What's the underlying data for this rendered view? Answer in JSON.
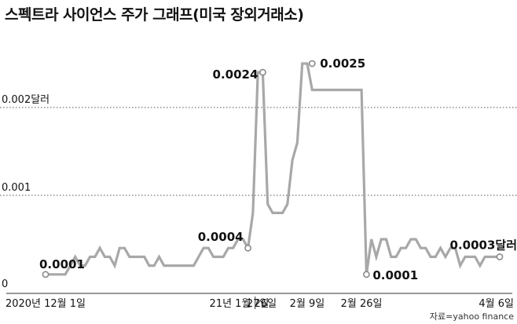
{
  "chart_data": {
    "type": "line",
    "title": "스펙트라 사이언스 주가 그래프(미국 장외거래소)",
    "source": "자료=yahoo finance",
    "unit": "달러",
    "y_ticks": [
      {
        "value": 0,
        "label": "0"
      },
      {
        "value": 0.001,
        "label": "0.001"
      },
      {
        "value": 0.002,
        "label": "0.002달러"
      }
    ],
    "ylim": [
      0,
      0.0028
    ],
    "grid": "dotted horizontal",
    "x_ticks": [
      {
        "index": 0,
        "label": "2020년 12월 1일"
      },
      {
        "index": 40,
        "label": "21년 1월 26일"
      },
      {
        "index": 43,
        "label": "27일"
      },
      {
        "index": 53,
        "label": "2월 9일"
      },
      {
        "index": 64,
        "label": "2월 26일"
      },
      {
        "index": 92,
        "label": "4월 6일"
      }
    ],
    "annotations": [
      {
        "index": 0,
        "value": 0.0001,
        "label": "0.0001"
      },
      {
        "index": 41,
        "value": 0.0004,
        "label": "0.0004"
      },
      {
        "index": 44,
        "value": 0.0024,
        "label": "0.0024"
      },
      {
        "index": 54,
        "value": 0.0025,
        "label": "0.0025"
      },
      {
        "index": 65,
        "value": 0.0001,
        "label": "0.0001"
      },
      {
        "index": 92,
        "value": 0.0003,
        "label": "0.0003달러"
      }
    ],
    "series": [
      {
        "values": [
          0.0001,
          0.0001,
          0.0001,
          0.0001,
          0.0001,
          0.0002,
          0.0003,
          0.0002,
          0.0002,
          0.0003,
          0.0003,
          0.0004,
          0.0003,
          0.0003,
          0.0002,
          0.0004,
          0.0004,
          0.0003,
          0.0003,
          0.0003,
          0.0003,
          0.0002,
          0.0002,
          0.0003,
          0.0002,
          0.0002,
          0.0002,
          0.0002,
          0.0002,
          0.0002,
          0.0002,
          0.0003,
          0.0004,
          0.0004,
          0.0003,
          0.0003,
          0.0003,
          0.0004,
          0.0004,
          0.0005,
          0.0005,
          0.0004,
          0.0008,
          0.0024,
          0.0024,
          0.0009,
          0.0008,
          0.0008,
          0.0008,
          0.0009,
          0.0014,
          0.0016,
          0.0025,
          0.0025,
          0.0022,
          0.0022,
          0.0022,
          0.0022,
          0.0022,
          0.0022,
          0.0022,
          0.0022,
          0.0022,
          0.0022,
          0.0022,
          0.0001,
          0.0005,
          0.0003,
          0.0005,
          0.0005,
          0.0003,
          0.0003,
          0.0004,
          0.0004,
          0.0005,
          0.0005,
          0.0004,
          0.0004,
          0.0003,
          0.0003,
          0.0004,
          0.0003,
          0.0004,
          0.0004,
          0.0002,
          0.0003,
          0.0003,
          0.0003,
          0.0002,
          0.0003,
          0.0003,
          0.0003,
          0.0003
        ]
      }
    ]
  }
}
